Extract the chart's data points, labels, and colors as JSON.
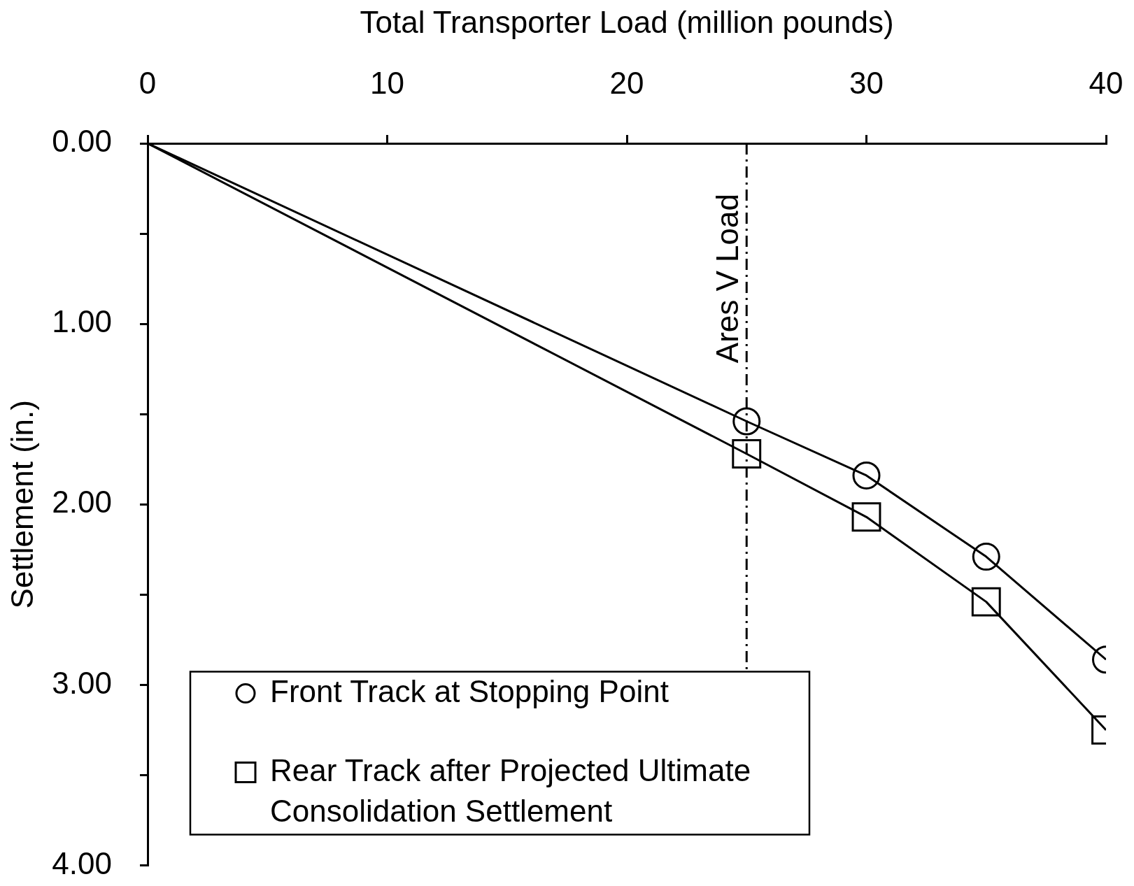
{
  "chart_data": {
    "type": "line",
    "xlabel": "Total Transporter Load (million pounds)",
    "ylabel": "Settlement (in.)",
    "x": [
      0,
      25,
      30,
      35,
      40
    ],
    "xlim": [
      0,
      40
    ],
    "xticks": [
      0,
      10,
      20,
      30,
      40
    ],
    "ylim": [
      4,
      0
    ],
    "yticks": [
      {
        "value": 0,
        "label": "0.00"
      },
      {
        "value": 0.5,
        "label": null
      },
      {
        "value": 1,
        "label": "1.00"
      },
      {
        "value": 1.5,
        "label": null
      },
      {
        "value": 2,
        "label": "2.00"
      },
      {
        "value": 2.5,
        "label": null
      },
      {
        "value": 3,
        "label": "3.00"
      },
      {
        "value": 3.5,
        "label": null
      },
      {
        "value": 4,
        "label": "4.00"
      }
    ],
    "series": [
      {
        "name": "Front Track at Stopping Point",
        "color": "#000000",
        "marker": "circle",
        "values": [
          0,
          1.54,
          1.84,
          2.29,
          2.86
        ]
      },
      {
        "name": "Rear Track after Projected Ultimate Consolidation Settlement",
        "color": "#000000",
        "marker": "square",
        "values": [
          0,
          1.72,
          2.07,
          2.54,
          3.25
        ]
      }
    ],
    "ref_lines": [
      {
        "axis": "x",
        "value": 25,
        "label": "Ares V Load",
        "color": "#000000",
        "line_style": "dashed"
      }
    ],
    "grid": false,
    "legend": "bottom left"
  }
}
